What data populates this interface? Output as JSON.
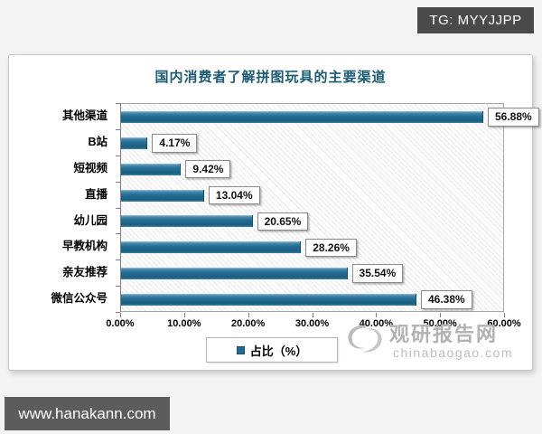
{
  "page": {
    "top_badge": "TG: MYYJJPP",
    "bottom_badge": "www.hanakann.com"
  },
  "watermark": {
    "name": "观研报告网",
    "domain": "chinabaogao.com"
  },
  "chart_data": {
    "type": "bar",
    "orientation": "horizontal",
    "title": "国内消费者了解拼图玩具的主要渠道",
    "categories": [
      "其他渠道",
      "B站",
      "短视频",
      "直播",
      "幼儿园",
      "早教机构",
      "亲友推荐",
      "微信公众号"
    ],
    "values": [
      56.88,
      4.17,
      9.42,
      13.04,
      20.65,
      28.26,
      35.54,
      46.38
    ],
    "value_labels": [
      "56.88%",
      "4.17%",
      "9.42%",
      "13.04%",
      "20.65%",
      "28.26%",
      "35.54%",
      "46.38%"
    ],
    "x_ticks": [
      "0.00%",
      "10.00%",
      "20.00%",
      "30.00%",
      "40.00%",
      "50.00%",
      "60.00%"
    ],
    "xlim": [
      0,
      60
    ],
    "grid": false,
    "legend_label": "占比（%）",
    "legend_position": "bottom-center",
    "bar_color": "#1f6c92",
    "title_color": "#1a5a73",
    "plot_hatch": "diagonal-light-gray"
  }
}
